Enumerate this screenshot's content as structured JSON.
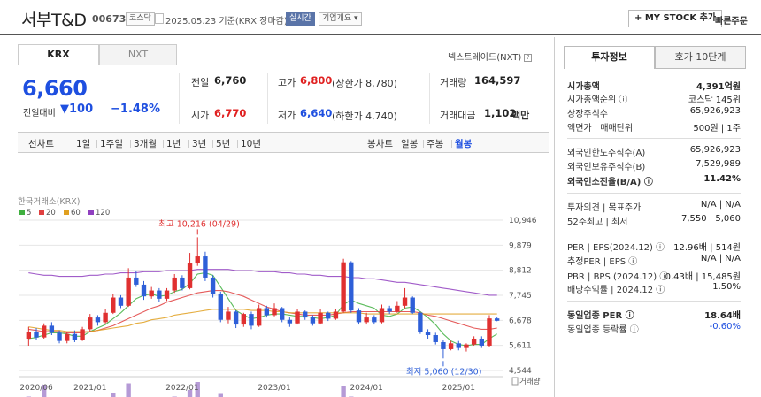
{
  "header": {
    "title": "서부T&D",
    "code": "006730",
    "market_badge": "코스닥",
    "date_text": "2025.05.23 기준(KRX 장마감)",
    "realtime_badge": "실시간",
    "company_info": "기업개요 ▾",
    "mystock_button": "+ MY STOCK 추가",
    "quick_order": "빠른주문"
  },
  "market_tabs": {
    "krx": "KRX",
    "nxt": "NXT"
  },
  "nextrade_label": "넥스트레이드(NXT)",
  "price": {
    "current": "6,660",
    "change_label": "전일대비",
    "change_value": "▼100",
    "change_percent": "−1.48%"
  },
  "summary": {
    "prev_label": "전일",
    "prev_value": "6,760",
    "high_label": "고가",
    "high_value": "6,800",
    "upper_limit": "(상한가 8,780)",
    "volume_label": "거래량",
    "volume_value": "164,597",
    "open_label": "시가",
    "open_value": "6,770",
    "low_label": "저가",
    "low_value": "6,640",
    "lower_limit": "(하한가 4,740)",
    "amount_label": "거래대금",
    "amount_value": "1,102",
    "amount_unit": "백만"
  },
  "period_tabs": {
    "line": [
      "선차트",
      "1일",
      "1주일",
      "3개월",
      "1년",
      "3년",
      "5년",
      "10년"
    ],
    "candle": [
      "봉차트",
      "일봉",
      "주봉",
      "월봉"
    ]
  },
  "chart_data": {
    "type": "candlestick",
    "source_label": "한국거래소(KRX)",
    "legend": [
      {
        "name": "5",
        "color": "#40b040"
      },
      {
        "name": "20",
        "color": "#e04040"
      },
      {
        "name": "60",
        "color": "#e0a020"
      },
      {
        "name": "120",
        "color": "#9040c0"
      }
    ],
    "y_ticks": [
      "10,946",
      "9,879",
      "8,812",
      "7,745",
      "6,678",
      "5,611",
      "4,544"
    ],
    "y_tick_values": [
      10946,
      9879,
      8812,
      7745,
      6678,
      5611,
      4544
    ],
    "ylim": [
      4544,
      10946
    ],
    "x_ticks": [
      {
        "label": "2020/06",
        "index": 0
      },
      {
        "label": "2021/01",
        "index": 7
      },
      {
        "label": "2022/01",
        "index": 19
      },
      {
        "label": "2023/01",
        "index": 31
      },
      {
        "label": "2024/01",
        "index": 43
      },
      {
        "label": "2025/01",
        "index": 55
      }
    ],
    "high_annotation": {
      "text": "최고 10,216 (04/29)",
      "index": 22,
      "value": 10216
    },
    "low_annotation": {
      "text": "최저 5,060 (12/30)",
      "index": 54,
      "value": 5060
    },
    "volume_label": "거래량",
    "candles": [
      [
        5900,
        6200,
        6400,
        5600
      ],
      [
        6200,
        5950,
        6350,
        5850
      ],
      [
        5950,
        6450,
        6550,
        5900
      ],
      [
        6450,
        6150,
        6600,
        6050
      ],
      [
        6150,
        5800,
        6250,
        5700
      ],
      [
        5800,
        6100,
        6200,
        5700
      ],
      [
        6100,
        5850,
        6250,
        5750
      ],
      [
        5850,
        6300,
        6400,
        5800
      ],
      [
        6300,
        6800,
        6950,
        6200
      ],
      [
        6800,
        6600,
        6900,
        6450
      ],
      [
        6600,
        7000,
        7150,
        6500
      ],
      [
        7000,
        7650,
        7800,
        6950
      ],
      [
        7650,
        7300,
        7750,
        7200
      ],
      [
        7300,
        8500,
        8900,
        7250
      ],
      [
        8500,
        8200,
        8800,
        8100
      ],
      [
        8200,
        7700,
        8350,
        7550
      ],
      [
        7700,
        7950,
        8100,
        7600
      ],
      [
        7950,
        7600,
        8050,
        7450
      ],
      [
        7600,
        7950,
        8050,
        7500
      ],
      [
        7950,
        8500,
        8650,
        7850
      ],
      [
        8500,
        8050,
        8600,
        7950
      ],
      [
        8050,
        9100,
        9550,
        8000
      ],
      [
        9100,
        9400,
        10216,
        9000
      ],
      [
        9400,
        8500,
        9600,
        8350
      ],
      [
        8500,
        7800,
        8600,
        7650
      ],
      [
        7800,
        6700,
        7900,
        6600
      ],
      [
        6700,
        7050,
        7250,
        6550
      ],
      [
        7050,
        6500,
        7100,
        6350
      ],
      [
        6500,
        6950,
        7000,
        6400
      ],
      [
        6950,
        6450,
        7050,
        6300
      ],
      [
        6450,
        7200,
        7350,
        6400
      ],
      [
        7200,
        6900,
        7300,
        6800
      ],
      [
        6900,
        7200,
        7400,
        6850
      ],
      [
        7200,
        6700,
        7250,
        6600
      ],
      [
        6700,
        6550,
        6800,
        6400
      ],
      [
        6550,
        7050,
        7150,
        6500
      ],
      [
        7050,
        6800,
        7100,
        6700
      ],
      [
        6800,
        6550,
        6900,
        6450
      ],
      [
        6550,
        7000,
        7150,
        6500
      ],
      [
        7000,
        6750,
        7050,
        6650
      ],
      [
        6750,
        7050,
        7150,
        6700
      ],
      [
        7050,
        9150,
        9300,
        7000
      ],
      [
        9150,
        7100,
        9200,
        7000
      ],
      [
        7100,
        6600,
        7200,
        6500
      ],
      [
        6600,
        6800,
        7000,
        6500
      ],
      [
        6800,
        6600,
        6900,
        6500
      ],
      [
        6600,
        7200,
        7350,
        6550
      ],
      [
        7200,
        7050,
        7300,
        6950
      ],
      [
        7050,
        7300,
        7500,
        7000
      ],
      [
        7300,
        7650,
        8050,
        7200
      ],
      [
        7650,
        7000,
        7700,
        6950
      ],
      [
        7000,
        6200,
        7050,
        6100
      ],
      [
        6200,
        6050,
        6300,
        5900
      ],
      [
        6050,
        5750,
        6150,
        5650
      ],
      [
        5750,
        5450,
        5850,
        5060
      ],
      [
        5450,
        5700,
        5800,
        5400
      ],
      [
        5700,
        5500,
        5800,
        5400
      ],
      [
        5500,
        5650,
        5700,
        5350
      ],
      [
        5650,
        5900,
        6000,
        5600
      ],
      [
        5900,
        5600,
        6000,
        5500
      ],
      [
        5600,
        6760,
        6900,
        5550
      ],
      [
        6760,
        6660,
        6800,
        6640
      ]
    ],
    "volumes": [
      45,
      28,
      90,
      35,
      24,
      20,
      28,
      40,
      20,
      35,
      25,
      60,
      30,
      95,
      25,
      28,
      30,
      20,
      25,
      45,
      22,
      70,
      100,
      40,
      30,
      55,
      30,
      22,
      28,
      20,
      25,
      18,
      22,
      20,
      18,
      22,
      25,
      16,
      20,
      18,
      22,
      85,
      45,
      30,
      18,
      20,
      25,
      18,
      22,
      35,
      28,
      40,
      25,
      22,
      30,
      18,
      20,
      18,
      22,
      18,
      25,
      12
    ],
    "ma": [
      {
        "name": "5",
        "values": [
          5900,
          5950,
          6050,
          6150,
          6150,
          6100,
          6000,
          6000,
          6200,
          6350,
          6500,
          6750,
          7000,
          7300,
          7600,
          7750,
          7800,
          7700,
          7750,
          7900,
          8000,
          8250,
          8650,
          8700,
          8600,
          8100,
          7600,
          7100,
          6900,
          6750,
          6800,
          6900,
          6950,
          6950,
          6900,
          6850,
          6850,
          6800,
          6750,
          6800,
          6900,
          7350,
          7550,
          7400,
          7300,
          7200,
          6900,
          6850,
          6950,
          7200,
          7250,
          7050,
          6800,
          6500,
          6100,
          5800,
          5650,
          5600,
          5650,
          5650,
          5900,
          6100
        ]
      },
      {
        "name": "20",
        "values": [
          6300,
          6250,
          6200,
          6200,
          6200,
          6150,
          6150,
          6150,
          6200,
          6250,
          6350,
          6450,
          6600,
          6750,
          6900,
          7050,
          7200,
          7300,
          7450,
          7550,
          7650,
          7750,
          7850,
          7900,
          7950,
          7950,
          7900,
          7800,
          7700,
          7550,
          7400,
          7250,
          7150,
          7050,
          7000,
          6950,
          6900,
          6900,
          6900,
          6900,
          6950,
          7000,
          7050,
          7050,
          7050,
          7050,
          7050,
          7050,
          7050,
          7050,
          7050,
          7000,
          6900,
          6850,
          6750,
          6650,
          6550,
          6450,
          6350,
          6300,
          6300,
          6350
        ]
      },
      {
        "name": "60",
        "values": [
          6400,
          6350,
          6300,
          6250,
          6250,
          6200,
          6200,
          6200,
          6200,
          6250,
          6300,
          6350,
          6400,
          6450,
          6550,
          6600,
          6700,
          6750,
          6800,
          6900,
          6950,
          7000,
          7050,
          7100,
          7150,
          7150,
          7150,
          7150,
          7150,
          7100,
          7100,
          7100,
          7050,
          7050,
          7000,
          7000,
          7000,
          7000,
          7000,
          7000,
          7000,
          7000,
          7000,
          7000,
          6950,
          6950,
          6950,
          6950,
          6950,
          6950,
          6950,
          6950,
          6950,
          6950,
          6950,
          6950,
          6950,
          6950,
          6950,
          6950,
          6950,
          6950
        ]
      },
      {
        "name": "120",
        "values": [
          8700,
          8650,
          8600,
          8600,
          8550,
          8550,
          8550,
          8550,
          8600,
          8600,
          8650,
          8650,
          8700,
          8700,
          8700,
          8750,
          8750,
          8750,
          8800,
          8800,
          8800,
          8800,
          8850,
          8850,
          8850,
          8850,
          8850,
          8800,
          8800,
          8800,
          8750,
          8750,
          8750,
          8700,
          8700,
          8650,
          8650,
          8600,
          8600,
          8550,
          8550,
          8550,
          8500,
          8500,
          8450,
          8450,
          8400,
          8350,
          8300,
          8300,
          8250,
          8200,
          8150,
          8100,
          8050,
          8000,
          7950,
          7900,
          7850,
          7800,
          7750,
          7750
        ]
      }
    ]
  },
  "invest_tabs": {
    "info": "투자정보",
    "orderbook": "호가 10단계"
  },
  "invest_rows": [
    {
      "k": "시가총액",
      "v": "4,391억원",
      "bold": true
    },
    {
      "k": "시가총액순위 ⓘ",
      "v": "코스닥 145위"
    },
    {
      "k": "상장주식수",
      "v": "65,926,923"
    },
    {
      "k": "액면가 | 매매단위",
      "v": "500원 | 1주"
    },
    {
      "k": "외국인한도주식수(A)",
      "v": "65,926,923"
    },
    {
      "k": "외국인보유주식수(B)",
      "v": "7,529,989"
    },
    {
      "k": "외국인소진율(B/A) ⓘ",
      "v": "11.42%",
      "bold": true
    },
    {
      "k": "투자의견 | 목표주가",
      "v": "N/A | N/A"
    },
    {
      "k": "52주최고 | 최저",
      "v": "7,550 | 5,060"
    },
    {
      "k": "PER | EPS(2024.12) ⓘ",
      "v": "12.96배 | 514원"
    },
    {
      "k": "추정PER | EPS ⓘ",
      "v": "N/A | N/A"
    },
    {
      "k": "PBR | BPS (2024.12) ⓘ",
      "v": "0.43배 | 15,485원"
    },
    {
      "k": "배당수익률 | 2024.12 ⓘ",
      "v": "1.50%"
    },
    {
      "k": "동일업종 PER ⓘ",
      "v": "18.64배",
      "bold": true
    },
    {
      "k": "동일업종 등락률 ⓘ",
      "v": "-0.60%",
      "blue": true
    }
  ]
}
